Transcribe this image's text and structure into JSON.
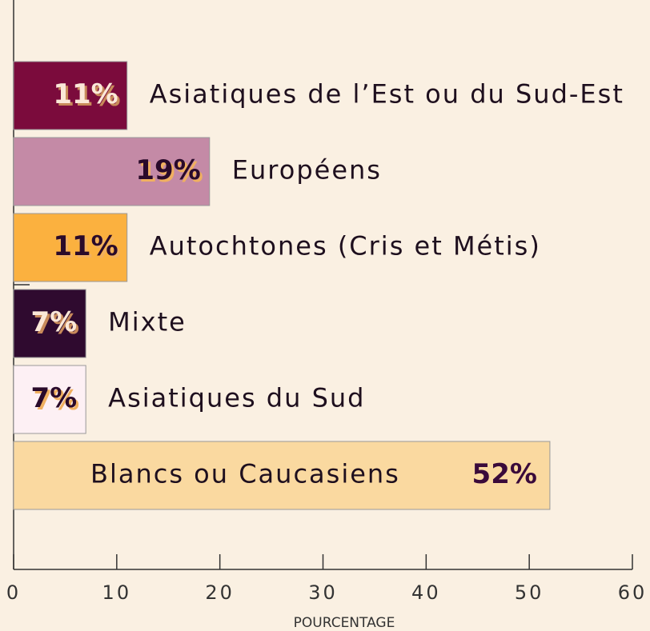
{
  "chart_data": {
    "type": "barh",
    "categories": [
      "Asiatiques de l’Est ou du Sud-Est",
      "Européens",
      "Autochtones (Cris et Métis)",
      "Mixte",
      "Asiatiques du Sud",
      "Blancs ou Caucasiens"
    ],
    "values": [
      11,
      19,
      11,
      7,
      7,
      52
    ],
    "value_labels": [
      "11%",
      "19%",
      "11%",
      "7%",
      "7%",
      "52%"
    ],
    "colors": [
      "#7b0b3c",
      "#c48aa6",
      "#fbb13f",
      "#2f0a2f",
      "#fdf0f4",
      "#fad9a0"
    ],
    "xlim": [
      0,
      60
    ],
    "xticks": [
      0,
      10,
      20,
      30,
      40,
      50,
      60
    ],
    "xlabel": "POURCENTAGE"
  }
}
